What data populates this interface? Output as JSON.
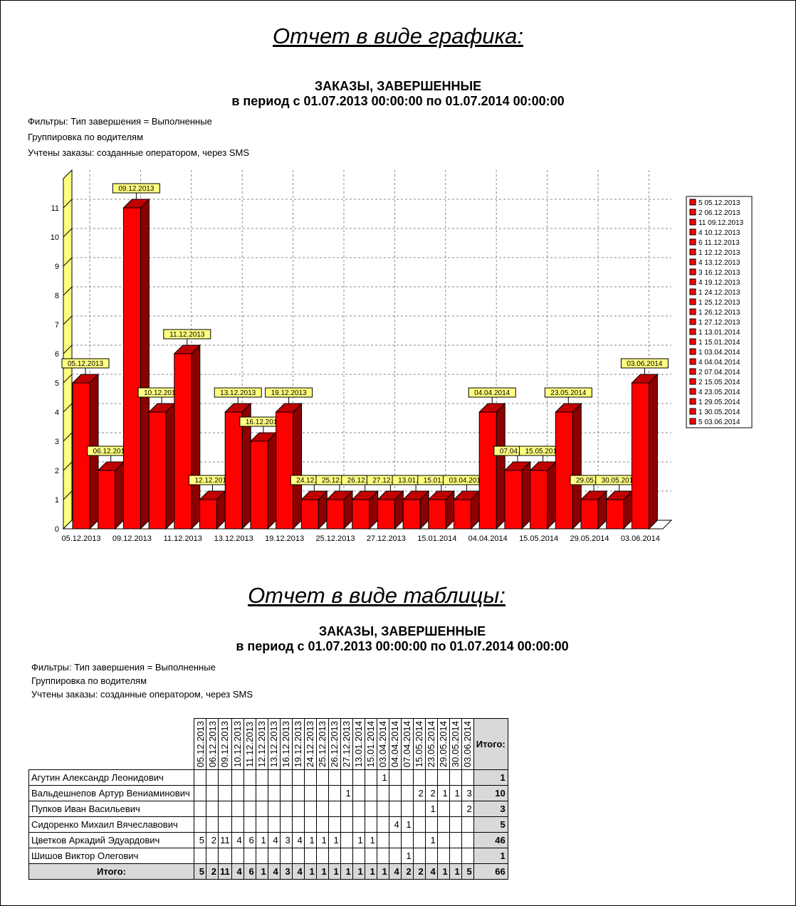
{
  "graph_heading": "Отчет в виде графика:",
  "table_heading": "Отчет в виде таблицы:",
  "report": {
    "title": "ЗАКАЗЫ, ЗАВЕРШЕННЫЕ",
    "period": "в период с 01.07.2013 00:00:00 по 01.07.2014 00:00:00",
    "filters": "Фильтры: Тип завершения = Выполненные",
    "grouping": "Группировка по водителям",
    "counted": "Учтены заказы: созданные оператором, через SMS"
  },
  "colors": {
    "bar": "#ff0000",
    "bar_side": "#8b0000",
    "label_bg": "#ffff80",
    "wall": "#ffff80"
  },
  "chart_data": {
    "type": "bar",
    "title": "ЗАКАЗЫ, ЗАВЕРШЕННЫЕ",
    "ylim": [
      0,
      12
    ],
    "yticks": [
      0,
      1,
      2,
      3,
      4,
      5,
      6,
      7,
      8,
      9,
      10,
      11
    ],
    "legend": "right",
    "grid": true,
    "categories": [
      "05.12.2013",
      "06.12.2013",
      "09.12.2013",
      "10.12.2013",
      "11.12.2013",
      "12.12.2013",
      "13.12.2013",
      "16.12.2013",
      "19.12.2013",
      "24.12.2013",
      "25.12.2013",
      "26.12.2013",
      "27.12.2013",
      "13.01.2014",
      "15.01.2014",
      "03.04.2014",
      "04.04.2014",
      "07.04.2014",
      "15.05.2014",
      "23.05.2014",
      "29.05.2014",
      "30.05.2014",
      "03.06.2014"
    ],
    "values": [
      5,
      2,
      11,
      4,
      6,
      1,
      4,
      3,
      4,
      1,
      1,
      1,
      1,
      1,
      1,
      1,
      4,
      2,
      2,
      4,
      1,
      1,
      5
    ]
  },
  "table": {
    "total_label": "Итого:",
    "grand_total": "66",
    "rows": [
      {
        "name": "Агутин Александр Леонидович",
        "cells": [
          "",
          "",
          "",
          "",
          "",
          "",
          "",
          "",
          "",
          "",
          "",
          "",
          "",
          "",
          "",
          "1",
          "",
          "",
          "",
          "",
          "",
          "",
          ""
        ],
        "total": "1"
      },
      {
        "name": "Вальдешнепов Артур Вениаминович",
        "cells": [
          "",
          "",
          "",
          "",
          "",
          "",
          "",
          "",
          "",
          "",
          "",
          "",
          "1",
          "",
          "",
          "",
          "",
          "",
          "2",
          "2",
          "1",
          "1",
          "3"
        ],
        "total": "10"
      },
      {
        "name": "Пупков Иван Васильевич",
        "cells": [
          "",
          "",
          "",
          "",
          "",
          "",
          "",
          "",
          "",
          "",
          "",
          "",
          "",
          "",
          "",
          "",
          "",
          "",
          "",
          "1",
          "",
          "",
          "2"
        ],
        "total": "3"
      },
      {
        "name": "Сидоренко Михаил Вячеславович",
        "cells": [
          "",
          "",
          "",
          "",
          "",
          "",
          "",
          "",
          "",
          "",
          "",
          "",
          "",
          "",
          "",
          "",
          "4",
          "1",
          "",
          "",
          "",
          "",
          ""
        ],
        "total": "5"
      },
      {
        "name": "Цветков Аркадий Эдуардович",
        "cells": [
          "5",
          "2",
          "11",
          "4",
          "6",
          "1",
          "4",
          "3",
          "4",
          "1",
          "1",
          "1",
          "",
          "1",
          "1",
          "",
          "",
          "",
          "",
          "1",
          "",
          "",
          ""
        ],
        "total": "46"
      },
      {
        "name": "Шишов Виктор Олегович",
        "cells": [
          "",
          "",
          "",
          "",
          "",
          "",
          "",
          "",
          "",
          "",
          "",
          "",
          "",
          "",
          "",
          "",
          "",
          "1",
          "",
          "",
          "",
          "",
          ""
        ],
        "total": "1"
      }
    ],
    "col_totals": [
      "5",
      "2",
      "11",
      "4",
      "6",
      "1",
      "4",
      "3",
      "4",
      "1",
      "1",
      "1",
      "1",
      "1",
      "1",
      "1",
      "4",
      "2",
      "2",
      "4",
      "1",
      "1",
      "5"
    ]
  }
}
